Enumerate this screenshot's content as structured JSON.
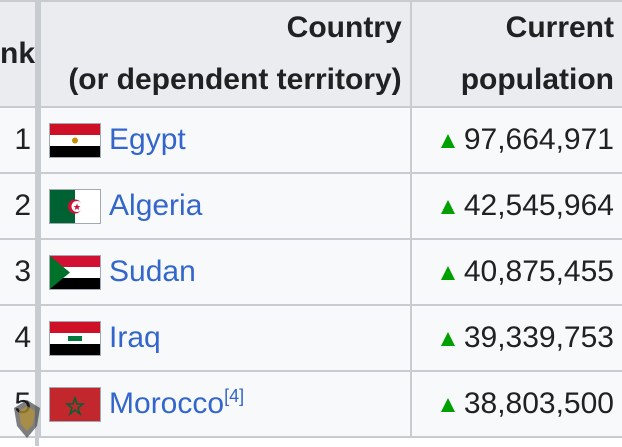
{
  "header": {
    "rank_label": "nk",
    "country_line1": "Country",
    "country_line2": "(or dependent territory)",
    "pop_line1": "Current",
    "pop_line2": "population"
  },
  "rows": [
    {
      "rank": "1",
      "country": "Egypt",
      "ref": "",
      "population": "97,664,971",
      "flag_icon": "egypt-flag"
    },
    {
      "rank": "2",
      "country": "Algeria",
      "ref": "",
      "population": "42,545,964",
      "flag_icon": "algeria-flag"
    },
    {
      "rank": "3",
      "country": "Sudan",
      "ref": "",
      "population": "40,875,455",
      "flag_icon": "sudan-flag"
    },
    {
      "rank": "4",
      "country": "Iraq",
      "ref": "",
      "population": "39,339,753",
      "flag_icon": "iraq-flag"
    },
    {
      "rank": "5",
      "country": "Morocco",
      "ref": "[4]",
      "population": "38,803,500",
      "flag_icon": "morocco-flag"
    }
  ],
  "trend_icon": "increase-triangle-icon",
  "colors": {
    "link": "#3366cc",
    "increase": "#00a000",
    "header_bg": "#eaecf0",
    "cell_bg": "#f8f9fa",
    "border": "#c8ccd1"
  }
}
